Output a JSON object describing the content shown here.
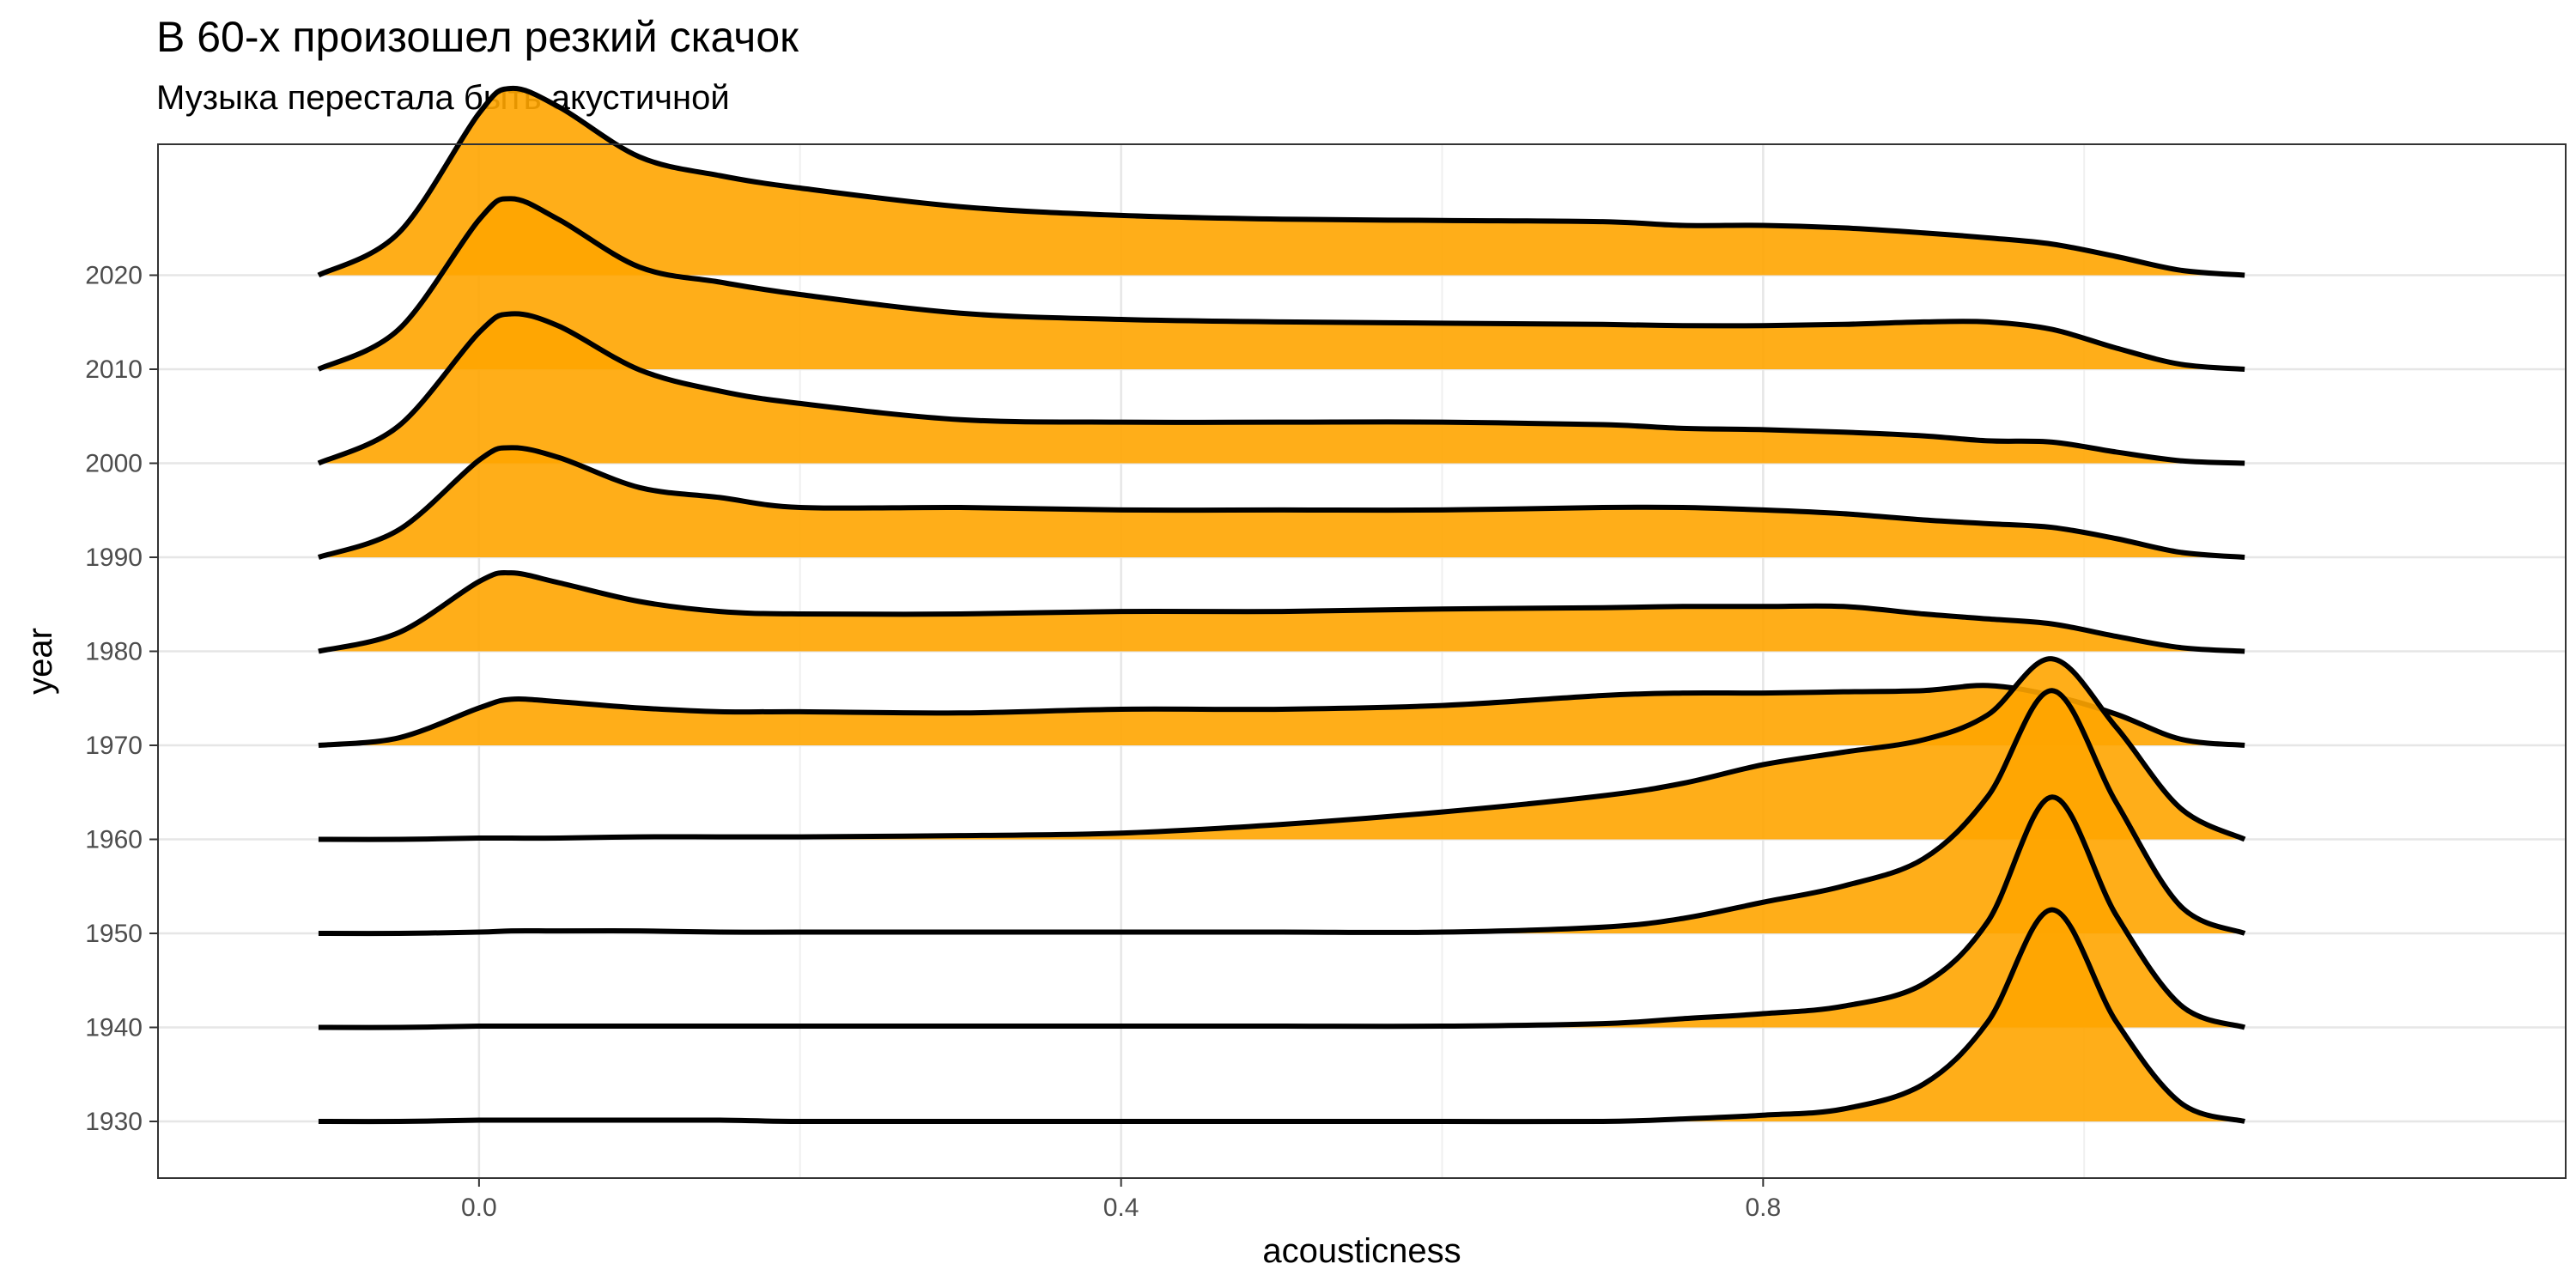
{
  "title": "В 60-х произошел резкий скачок",
  "subtitle": "Музыка перестала быть акустичной",
  "chart_data": {
    "type": "ridgeline-density",
    "xlabel": "acousticness",
    "ylabel": "year",
    "xlim": [
      -0.2,
      1.3
    ],
    "x_ticks": [
      0.0,
      0.4,
      0.8
    ],
    "x_tick_labels": [
      "0.0",
      "0.4",
      "0.8"
    ],
    "y_tick_labels": [
      "1930",
      "1940",
      "1950",
      "1960",
      "1970",
      "1980",
      "1990",
      "2000",
      "2010",
      "2020"
    ],
    "grid": true,
    "fill_color": "#FFA500",
    "line_color": "#000000",
    "x": [
      -0.1,
      -0.05,
      0.0,
      0.02,
      0.05,
      0.1,
      0.15,
      0.2,
      0.3,
      0.4,
      0.5,
      0.6,
      0.7,
      0.75,
      0.8,
      0.85,
      0.9,
      0.94,
      0.98,
      1.02,
      1.06,
      1.1
    ],
    "series": [
      {
        "name": "1930",
        "values": [
          0,
          0,
          0.01,
          0.01,
          0.01,
          0.01,
          0.01,
          0,
          0,
          0,
          0,
          0,
          0,
          0.02,
          0.05,
          0.1,
          0.3,
          0.8,
          1.7,
          0.8,
          0.15,
          0
        ]
      },
      {
        "name": "1940",
        "values": [
          0,
          0,
          0.01,
          0.01,
          0.01,
          0.01,
          0.01,
          0.01,
          0.01,
          0.01,
          0.01,
          0.01,
          0.03,
          0.07,
          0.11,
          0.17,
          0.35,
          0.85,
          1.85,
          0.9,
          0.18,
          0
        ]
      },
      {
        "name": "1950",
        "values": [
          0,
          0,
          0.01,
          0.02,
          0.02,
          0.02,
          0.01,
          0.01,
          0.01,
          0.01,
          0.01,
          0.01,
          0.05,
          0.12,
          0.25,
          0.38,
          0.6,
          1.1,
          1.95,
          1.05,
          0.22,
          0
        ]
      },
      {
        "name": "1960",
        "values": [
          0,
          0,
          0.01,
          0.01,
          0.01,
          0.02,
          0.02,
          0.02,
          0.03,
          0.05,
          0.12,
          0.22,
          0.35,
          0.45,
          0.6,
          0.7,
          0.8,
          1.0,
          1.45,
          0.9,
          0.25,
          0
        ]
      },
      {
        "name": "1970",
        "values": [
          0,
          0.06,
          0.3,
          0.37,
          0.35,
          0.3,
          0.27,
          0.27,
          0.26,
          0.29,
          0.29,
          0.32,
          0.4,
          0.42,
          0.42,
          0.43,
          0.44,
          0.48,
          0.4,
          0.25,
          0.05,
          0
        ]
      },
      {
        "name": "1980",
        "values": [
          0,
          0.15,
          0.56,
          0.63,
          0.55,
          0.4,
          0.32,
          0.3,
          0.3,
          0.32,
          0.32,
          0.34,
          0.35,
          0.36,
          0.36,
          0.36,
          0.3,
          0.26,
          0.22,
          0.12,
          0.03,
          0
        ]
      },
      {
        "name": "1990",
        "values": [
          0,
          0.22,
          0.78,
          0.88,
          0.8,
          0.56,
          0.48,
          0.4,
          0.4,
          0.38,
          0.38,
          0.38,
          0.4,
          0.4,
          0.38,
          0.35,
          0.3,
          0.27,
          0.24,
          0.15,
          0.04,
          0
        ]
      },
      {
        "name": "2000",
        "values": [
          0,
          0.3,
          1.05,
          1.2,
          1.1,
          0.75,
          0.58,
          0.48,
          0.35,
          0.33,
          0.33,
          0.33,
          0.31,
          0.28,
          0.27,
          0.25,
          0.22,
          0.18,
          0.17,
          0.09,
          0.02,
          0
        ]
      },
      {
        "name": "2010",
        "values": [
          0,
          0.32,
          1.2,
          1.37,
          1.2,
          0.82,
          0.7,
          0.6,
          0.45,
          0.4,
          0.38,
          0.37,
          0.36,
          0.35,
          0.35,
          0.36,
          0.38,
          0.38,
          0.32,
          0.17,
          0.04,
          0
        ]
      },
      {
        "name": "2020",
        "values": [
          0,
          0.34,
          1.3,
          1.5,
          1.35,
          0.95,
          0.8,
          0.7,
          0.55,
          0.48,
          0.45,
          0.44,
          0.43,
          0.4,
          0.4,
          0.38,
          0.34,
          0.3,
          0.25,
          0.15,
          0.04,
          0
        ]
      }
    ]
  }
}
